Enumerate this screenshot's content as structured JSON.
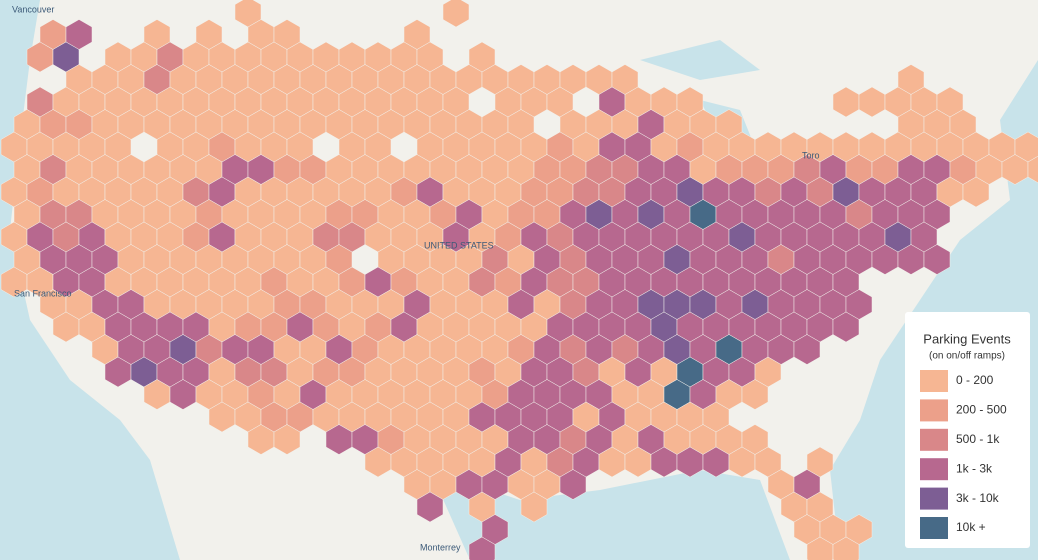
{
  "map": {
    "places": [
      "Vancouver",
      "San Francisco",
      "Monterrey",
      "UNITED STATES",
      "Toro"
    ],
    "legend": {
      "title": "Parking Events",
      "subtitle": "(on on/off ramps)",
      "classes": [
        {
          "label": "0 - 200",
          "color": "#f6b693"
        },
        {
          "label": "200 - 500",
          "color": "#eca08a"
        },
        {
          "label": "500 - 1k",
          "color": "#d98789"
        },
        {
          "label": "1k - 3k",
          "color": "#b7688f"
        },
        {
          "label": "3k - 10k",
          "color": "#7d5e94"
        },
        {
          "label": "10k +",
          "color": "#476a87"
        }
      ]
    },
    "hexbins": {
      "rows": [
        ".........0.......0......................",
        ".13..0.0.00....0........................",
        ".14.0020000000000.0.....................",
        "..0002000000000000000000..........0.....",
        ".20000000000000000.000.3000.....00000...",
        "01100000000000000000.0003000......000...",
        "00000.001000.00.000001033010000000000000",
        "0200000033110000000011223301112311331000",
        "01000002300000013000112233433232433300..",
        "022000010000110013011343435333332333....",
        "032300013000220003013233333343333343....",
        "0333000000001.0000203233343332333333....",
        "003300000010013100213223333333333.......",
        ".00330000011000300030233444343333.......",
        "..0033330113101300000333343333333.......",
        "...0334233003100000132323435333.........",
        "....34330220110000103320305330..........",
        ".....030010300000013333005300...........",
        "........00110000003333030000............",
        ".........00.33100003323030000...........",
        "..............0000030230033300.0........",
        "...............0033003.......03.........",
        "................3.0.0.........00........",
        "..................3...........000.......",
        "..................3............00......."
      ]
    }
  }
}
